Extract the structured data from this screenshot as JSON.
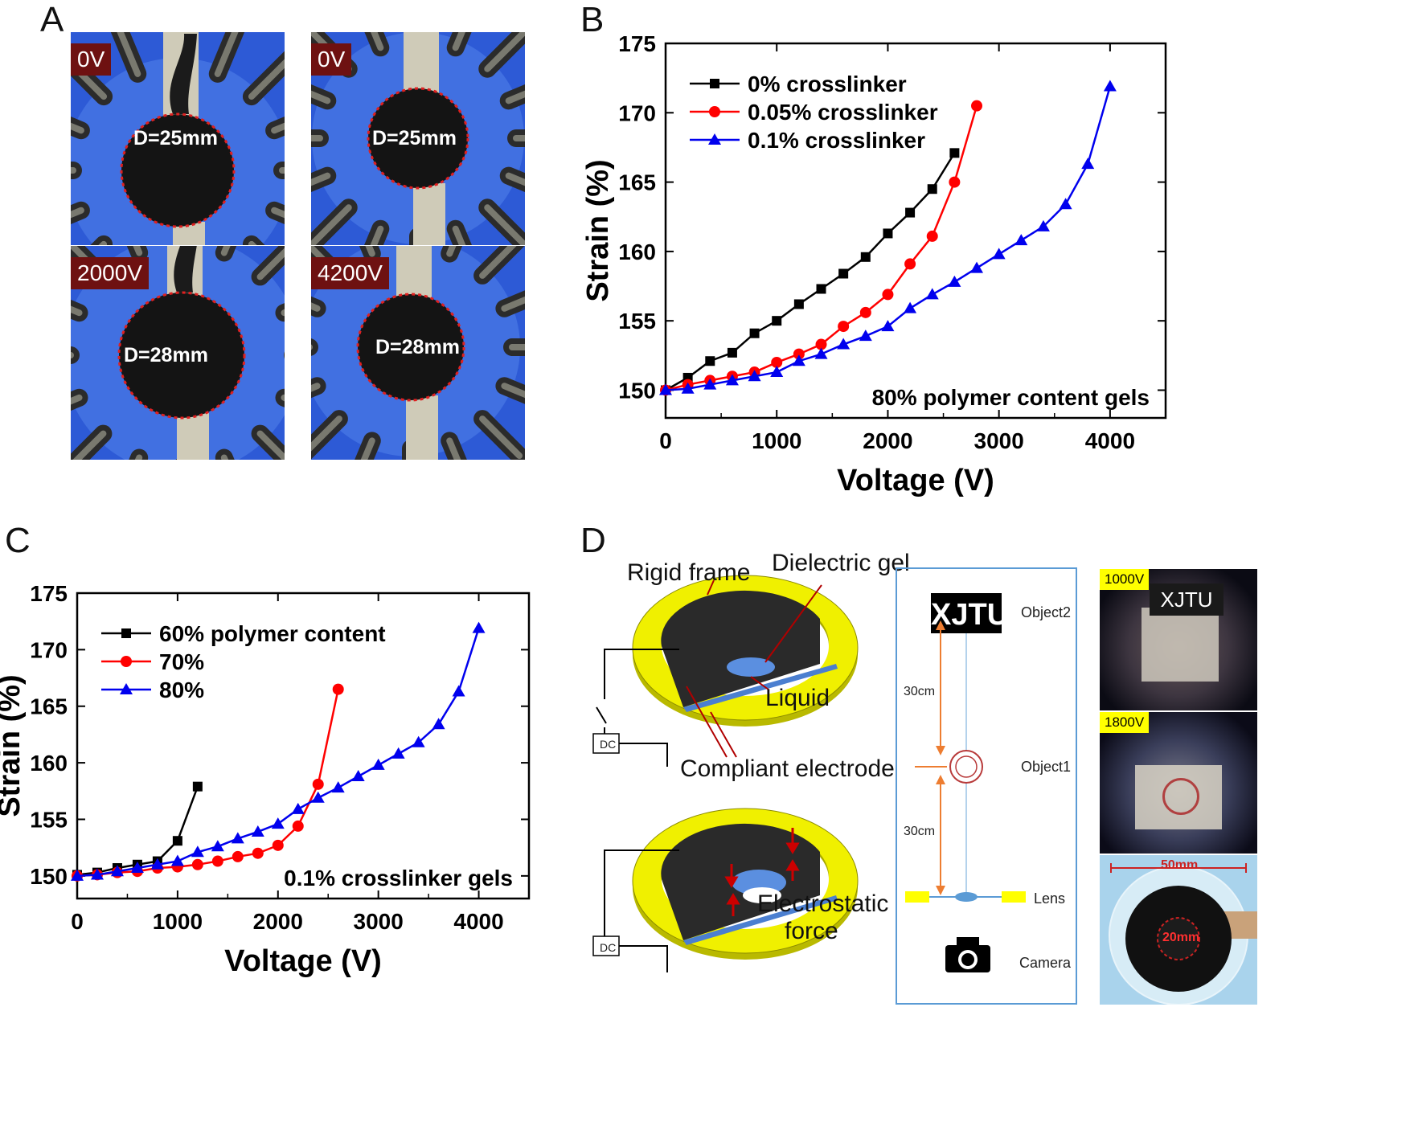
{
  "panels": {
    "a": {
      "letter": "A",
      "photos": [
        {
          "voltage": "0V",
          "diameter": "D=25mm"
        },
        {
          "voltage": "0V",
          "diameter": "D=25mm"
        },
        {
          "voltage": "2000V",
          "diameter": "D=28mm"
        },
        {
          "voltage": "4200V",
          "diameter": "D=28mm"
        }
      ]
    },
    "b": {
      "letter": "B"
    },
    "c": {
      "letter": "C"
    },
    "d": {
      "letter": "D",
      "labels": {
        "rigid_frame": "Rigid frame",
        "dielectric_gel": "Dielectric gel",
        "liquid": "Liquid",
        "compliant_electrode": "Compliant electrode",
        "electrostatic": "Electrostatic",
        "force": "force",
        "dc_top": "DC",
        "dc_bottom": "DC"
      },
      "optics": {
        "object2_text": "XJTU",
        "object2_label": "Object2",
        "object1_label": "Object1",
        "lens_label": "Lens",
        "camera_label": "Camera",
        "dist_top": "30cm",
        "dist_bottom": "30cm"
      },
      "photos": {
        "voltage_1": "1000V",
        "voltage_1_text": "XJTU",
        "voltage_2": "1800V",
        "outer_dim": "50mm",
        "inner_dim": "20mm"
      }
    }
  },
  "chart_data": [
    {
      "id": "B",
      "type": "line",
      "title": "",
      "xlabel": "Voltage (V)",
      "ylabel": "Strain (%)",
      "xlim": [
        0,
        4500
      ],
      "ylim": [
        148,
        175
      ],
      "xticks": [
        0,
        1000,
        2000,
        3000,
        4000
      ],
      "yticks": [
        150,
        155,
        160,
        165,
        170,
        175
      ],
      "annotation": "80% polymer content gels",
      "legend_position": "top-left",
      "series": [
        {
          "name": "0% crosslinker",
          "color": "#000000",
          "marker": "square",
          "x": [
            0,
            200,
            400,
            600,
            800,
            1000,
            1200,
            1400,
            1600,
            1800,
            2000,
            2200,
            2400,
            2600
          ],
          "y": [
            150.0,
            150.9,
            152.1,
            152.7,
            154.1,
            155.0,
            156.2,
            157.3,
            158.4,
            159.6,
            161.3,
            162.8,
            164.5,
            167.1
          ]
        },
        {
          "name": "0.05% crosslinker",
          "color": "#ff0000",
          "marker": "circle",
          "x": [
            0,
            200,
            400,
            600,
            800,
            1000,
            1200,
            1400,
            1600,
            1800,
            2000,
            2200,
            2400,
            2600,
            2800
          ],
          "y": [
            150.0,
            150.4,
            150.7,
            151.0,
            151.3,
            152.0,
            152.6,
            153.3,
            154.6,
            155.6,
            156.9,
            159.1,
            161.1,
            165.0,
            170.5
          ]
        },
        {
          "name": "0.1% crosslinker",
          "color": "#0000ee",
          "marker": "triangle",
          "x": [
            0,
            200,
            400,
            600,
            800,
            1000,
            1200,
            1400,
            1600,
            1800,
            2000,
            2200,
            2400,
            2600,
            2800,
            3000,
            3200,
            3400,
            3600,
            3800,
            4000
          ],
          "y": [
            150.0,
            150.1,
            150.4,
            150.7,
            151.0,
            151.3,
            152.1,
            152.6,
            153.3,
            153.9,
            154.6,
            155.9,
            156.9,
            157.8,
            158.8,
            159.8,
            160.8,
            161.8,
            163.4,
            166.3,
            171.9
          ]
        }
      ]
    },
    {
      "id": "C",
      "type": "line",
      "title": "",
      "xlabel": "Voltage (V)",
      "ylabel": "Strain (%)",
      "xlim": [
        0,
        4500
      ],
      "ylim": [
        148,
        175
      ],
      "xticks": [
        0,
        1000,
        2000,
        3000,
        4000
      ],
      "yticks": [
        150,
        155,
        160,
        165,
        170,
        175
      ],
      "annotation": "0.1% crosslinker gels",
      "legend_position": "top-left",
      "series": [
        {
          "name": "60% polymer content",
          "color": "#000000",
          "marker": "square",
          "x": [
            0,
            200,
            400,
            600,
            800,
            1000,
            1200
          ],
          "y": [
            150.1,
            150.3,
            150.7,
            151.0,
            151.3,
            153.1,
            157.9
          ]
        },
        {
          "name": "70%",
          "color": "#ff0000",
          "marker": "circle",
          "x": [
            0,
            200,
            400,
            600,
            800,
            1000,
            1200,
            1400,
            1600,
            1800,
            2000,
            2200,
            2400,
            2600
          ],
          "y": [
            150.0,
            150.1,
            150.3,
            150.4,
            150.7,
            150.8,
            151.0,
            151.3,
            151.7,
            152.0,
            152.7,
            154.4,
            158.1,
            166.5
          ]
        },
        {
          "name": "80%",
          "color": "#0000ee",
          "marker": "triangle",
          "x": [
            0,
            200,
            400,
            600,
            800,
            1000,
            1200,
            1400,
            1600,
            1800,
            2000,
            2200,
            2400,
            2600,
            2800,
            3000,
            3200,
            3400,
            3600,
            3800,
            4000
          ],
          "y": [
            150.0,
            150.1,
            150.4,
            150.7,
            151.0,
            151.3,
            152.1,
            152.6,
            153.3,
            153.9,
            154.6,
            155.9,
            156.9,
            157.8,
            158.8,
            159.8,
            160.8,
            161.8,
            163.4,
            166.3,
            171.9
          ]
        }
      ]
    }
  ]
}
